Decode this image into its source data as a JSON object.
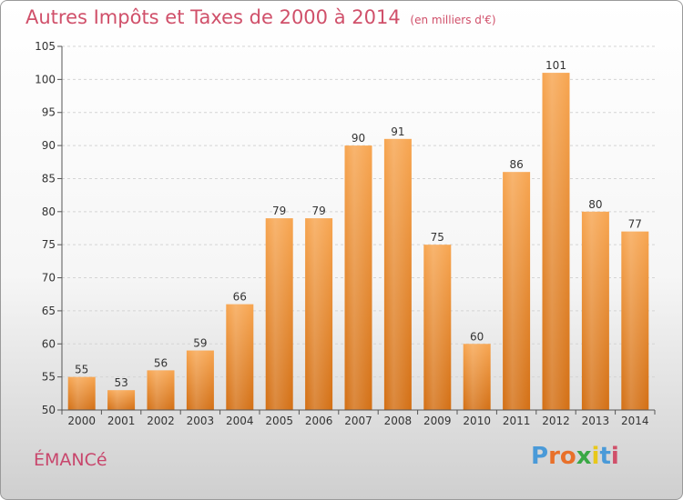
{
  "chart_data": {
    "type": "bar",
    "title": "Autres Impôts et Taxes de 2000 à 2014",
    "subtitle": "(en milliers d'€)",
    "categories": [
      "2000",
      "2001",
      "2002",
      "2003",
      "2004",
      "2005",
      "2006",
      "2007",
      "2008",
      "2009",
      "2010",
      "2011",
      "2012",
      "2013",
      "2014"
    ],
    "values": [
      55,
      53,
      56,
      59,
      66,
      79,
      79,
      90,
      91,
      75,
      60,
      86,
      101,
      80,
      77
    ],
    "ylim": [
      50,
      105
    ],
    "yticks": [
      50,
      55,
      60,
      65,
      70,
      75,
      80,
      85,
      90,
      95,
      100,
      105
    ],
    "grid": true,
    "bar_color": "#f0902a"
  },
  "footer": {
    "town": "ÉMANCé",
    "logo_letters": [
      "P",
      "r",
      "o",
      "x",
      "i",
      "t",
      "i"
    ],
    "logo_colors": [
      "#4a9ad8",
      "#e8702a",
      "#e8702a",
      "#3aa845",
      "#e8c81a",
      "#4a9ad8",
      "#d0506a"
    ]
  }
}
